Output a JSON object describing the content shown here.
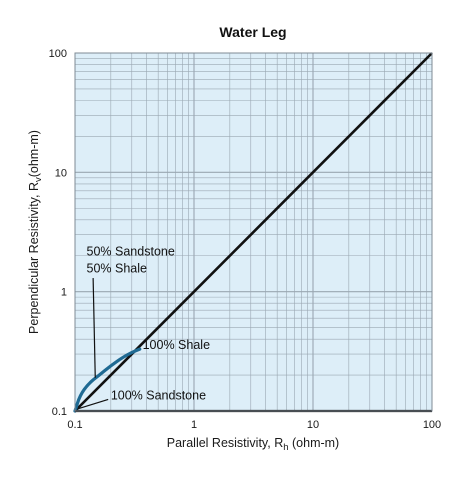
{
  "chart_data": {
    "type": "line",
    "title": "Water Leg",
    "xlabel": {
      "main": "Parallel Resistivity, R",
      "sub": "h",
      "unit": " (ohm-m)"
    },
    "ylabel": {
      "main": "Perpendicular Resistivity, R",
      "sub": "v",
      "unit": "(ohm-m)"
    },
    "xscale": "log",
    "yscale": "log",
    "xlim": [
      0.1,
      100
    ],
    "ylim": [
      0.1,
      100
    ],
    "x_ticks": [
      "0.1",
      "1",
      "10",
      "100"
    ],
    "y_ticks": [
      "0.1",
      "1",
      "10",
      "100"
    ],
    "grid": true,
    "colors": {
      "background": "#ddeef8",
      "grid": "#9aa7b2",
      "diagonal": "#111111",
      "curve": "#1f6a93"
    },
    "series": [
      {
        "x": [
          0.1,
          1,
          10,
          100
        ],
        "y": [
          0.1,
          1,
          10,
          100
        ]
      },
      {
        "x": [
          0.1,
          0.11,
          0.13,
          0.16,
          0.2,
          0.25,
          0.3,
          0.35
        ],
        "y": [
          0.1,
          0.135,
          0.17,
          0.2,
          0.24,
          0.28,
          0.31,
          0.33
        ]
      }
    ],
    "annotations": [
      {
        "text": "50% Sandstone",
        "x": 0.125,
        "y": 2.0
      },
      {
        "text": "50% Shale",
        "x": 0.125,
        "y": 1.45
      },
      {
        "text": "100% Shale",
        "x": 0.37,
        "y": 0.33
      },
      {
        "text": "100% Sandstone",
        "x": 0.2,
        "y": 0.125
      }
    ]
  }
}
